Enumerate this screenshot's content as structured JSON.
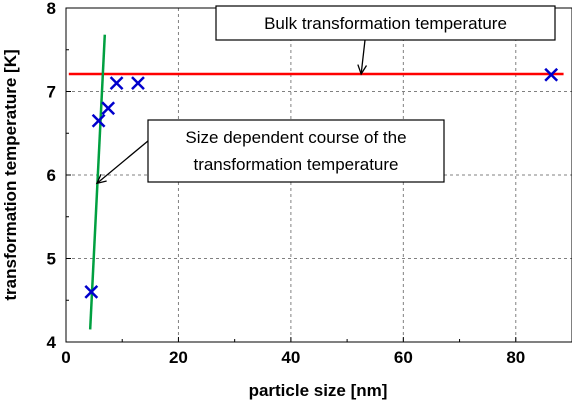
{
  "chart_data": {
    "type": "scatter",
    "xlabel": "particle size [nm]",
    "ylabel": "transformation temperature [K]",
    "xlim": [
      0,
      90
    ],
    "ylim": [
      4,
      8
    ],
    "xticks": [
      "0",
      "20",
      "40",
      "60",
      "80"
    ],
    "yticks": [
      "4",
      "5",
      "6",
      "7",
      "8"
    ],
    "grid": true,
    "series": [
      {
        "kind": "markers",
        "marker": "x",
        "color": "#0000cc",
        "points": [
          {
            "x": 4.5,
            "y": 4.6
          },
          {
            "x": 5.8,
            "y": 6.65
          },
          {
            "x": 7.5,
            "y": 6.8
          },
          {
            "x": 9.0,
            "y": 7.1
          },
          {
            "x": 12.8,
            "y": 7.1
          },
          {
            "x": 86.3,
            "y": 7.2
          }
        ]
      },
      {
        "kind": "line",
        "color": "#ff0000",
        "points": [
          {
            "x": 0.5,
            "y": 7.21
          },
          {
            "x": 88.5,
            "y": 7.21
          }
        ]
      },
      {
        "kind": "line",
        "color": "#00a040",
        "points": [
          {
            "x": 4.3,
            "y": 4.15
          },
          {
            "x": 6.9,
            "y": 7.68
          }
        ]
      }
    ],
    "annotations": [
      {
        "text": [
          "Bulk transformation temperature"
        ],
        "target": {
          "x": 52.5,
          "y": 7.21
        }
      },
      {
        "text": [
          "Size dependent course of the",
          "transformation temperature"
        ],
        "target": {
          "x": 5.5,
          "y": 5.9
        }
      }
    ]
  }
}
